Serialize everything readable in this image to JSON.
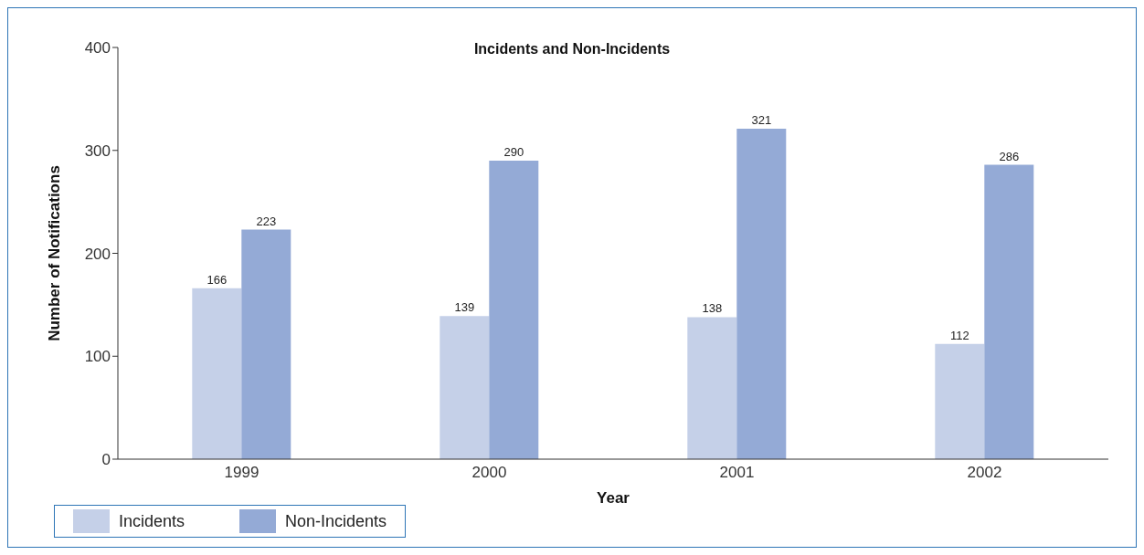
{
  "chart_data": {
    "type": "bar",
    "title": "Incidents and Non-Incidents",
    "xlabel": "Year",
    "ylabel": "Number of Notifications",
    "categories": [
      "1999",
      "2000",
      "2001",
      "2002"
    ],
    "series": [
      {
        "name": "Incidents",
        "color": "#c5d0e8",
        "values": [
          166,
          139,
          138,
          112
        ]
      },
      {
        "name": "Non-Incidents",
        "color": "#94aad6",
        "values": [
          223,
          290,
          321,
          286
        ]
      }
    ],
    "ylim": [
      0,
      400
    ],
    "yticks": [
      0,
      100,
      200,
      300,
      400
    ],
    "grid": false,
    "legend": "bottom",
    "data_labels": true
  }
}
